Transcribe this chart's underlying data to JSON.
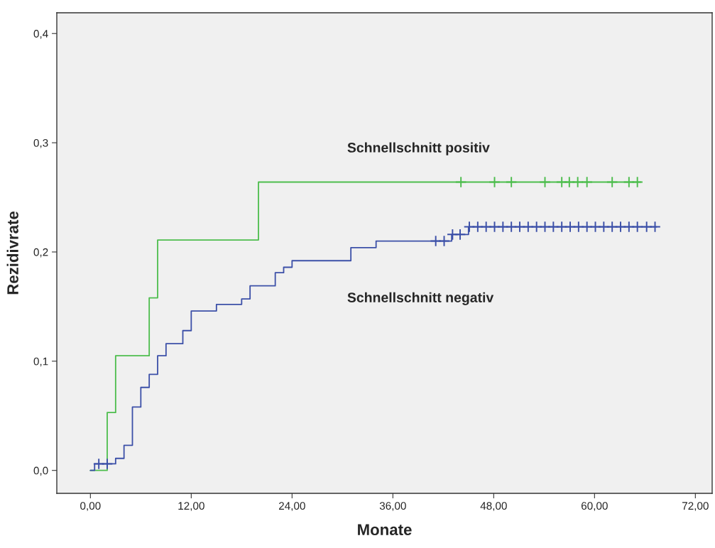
{
  "chart_data": {
    "type": "step",
    "xlabel": "Monate",
    "ylabel": "Rezidivrate",
    "xlim": [
      -4,
      74
    ],
    "ylim": [
      -0.021,
      0.419
    ],
    "xticks": [
      {
        "value": 0,
        "label": "0,00"
      },
      {
        "value": 12,
        "label": "12,00"
      },
      {
        "value": 24,
        "label": "24,00"
      },
      {
        "value": 36,
        "label": "36,00"
      },
      {
        "value": 48,
        "label": "48,00"
      },
      {
        "value": 60,
        "label": "60,00"
      },
      {
        "value": 72,
        "label": "72,00"
      }
    ],
    "yticks": [
      {
        "value": 0,
        "label": "0,0"
      },
      {
        "value": 0.1,
        "label": "0,1"
      },
      {
        "value": 0.2,
        "label": "0,2"
      },
      {
        "value": 0.3,
        "label": "0,3"
      },
      {
        "value": 0.4,
        "label": "0,4"
      }
    ],
    "grid": false,
    "legend": false,
    "series": [
      {
        "color": "#4dbd4d",
        "x": [
          0,
          2,
          3,
          7,
          8,
          20,
          65.5
        ],
        "values": [
          0,
          0.053,
          0.105,
          0.158,
          0.211,
          0.264,
          0.264
        ]
      },
      {
        "color": "#3c50a8",
        "x": [
          0,
          0.5,
          3,
          4,
          5,
          6,
          7,
          8,
          9,
          11,
          12,
          15,
          18,
          19,
          22,
          23,
          24,
          31,
          34,
          43,
          45,
          67.4
        ],
        "values": [
          0,
          0.006,
          0.011,
          0.023,
          0.058,
          0.076,
          0.088,
          0.105,
          0.116,
          0.128,
          0.146,
          0.152,
          0.157,
          0.169,
          0.181,
          0.186,
          0.192,
          0.204,
          0.21,
          0.216,
          0.223,
          0.223
        ]
      },
      {
        "type": "scatter",
        "marker": "cross",
        "color": "#4dbd4d",
        "x": [
          44.1,
          48.1,
          50.1,
          54.1,
          56.1,
          57.0,
          58.0,
          59.1,
          62.1,
          64.1,
          65.1
        ],
        "values": [
          0.264,
          0.264,
          0.264,
          0.264,
          0.264,
          0.264,
          0.264,
          0.264,
          0.264,
          0.264,
          0.264
        ]
      },
      {
        "type": "scatter",
        "marker": "cross",
        "color": "#3c50a8",
        "x": [
          1.0,
          2.0,
          41.1,
          42.1,
          43.1,
          44.0,
          45.1,
          46.1,
          47.1,
          48.1,
          49.1,
          50.1,
          51.1,
          52.1,
          53.1,
          54.1,
          55.1,
          56.1,
          57.1,
          58.1,
          59.1,
          60.1,
          61.1,
          62.1,
          63.1,
          64.1,
          65.1,
          66.2,
          67.2
        ],
        "values": [
          0.006,
          0.006,
          0.21,
          0.21,
          0.216,
          0.216,
          0.223,
          0.223,
          0.223,
          0.223,
          0.223,
          0.223,
          0.223,
          0.223,
          0.223,
          0.223,
          0.223,
          0.223,
          0.223,
          0.223,
          0.223,
          0.223,
          0.223,
          0.223,
          0.223,
          0.223,
          0.223,
          0.223,
          0.223
        ]
      }
    ],
    "annotations": [
      "Schnellschnitt positiv",
      "Schnellschnitt negativ"
    ]
  }
}
